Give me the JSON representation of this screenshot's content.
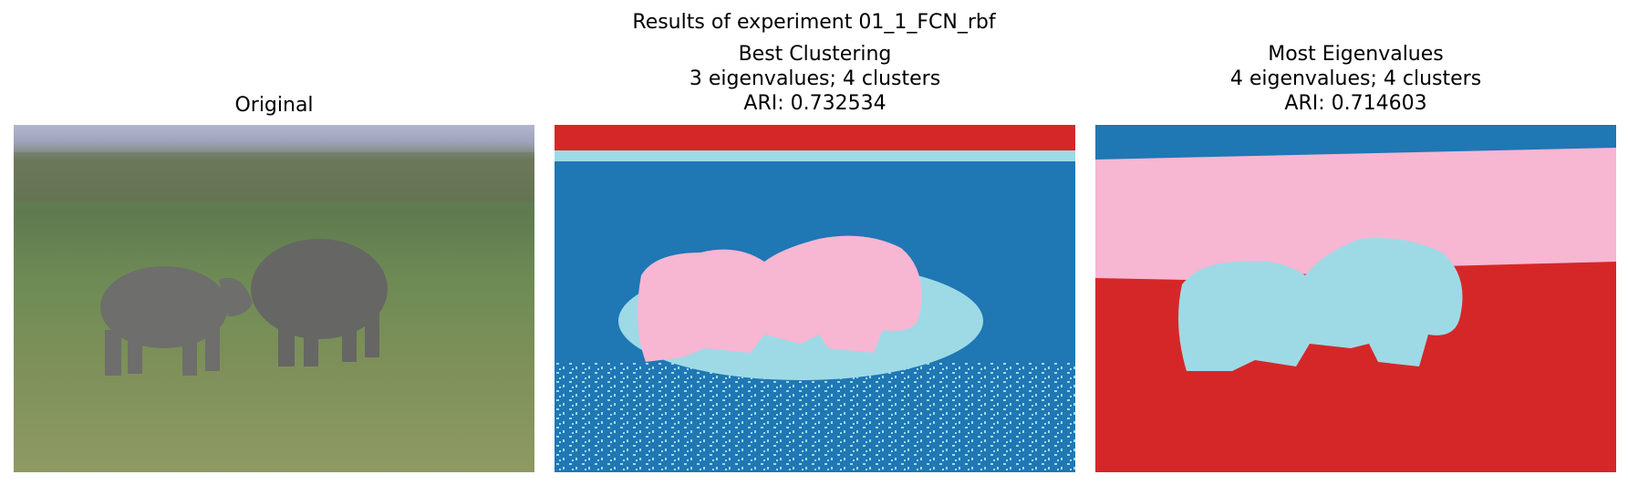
{
  "figure": {
    "title": "Results of experiment 01_1_FCN_rbf"
  },
  "panels": [
    {
      "id": "original",
      "title_lines": [
        "Original"
      ]
    },
    {
      "id": "best",
      "title_lines": [
        "Best Clustering",
        "3 eigenvalues; 4 clusters",
        "ARI: 0.732534"
      ]
    },
    {
      "id": "most",
      "title_lines": [
        "Most Eigenvalues",
        "4 eigenvalues; 4 clusters",
        "ARI: 0.714603"
      ]
    }
  ],
  "colors": {
    "tab_red": "#d62728",
    "tab_blue": "#1f77b4",
    "tab_pink": "#f7b6d2",
    "tab_cyan": "#9edae5",
    "sky": "#a9adc8",
    "grass_far": "#5f7a50",
    "grass_mid": "#6e8b55",
    "grass_near": "#8e9a5f",
    "rhino": "#6e6e6c"
  }
}
